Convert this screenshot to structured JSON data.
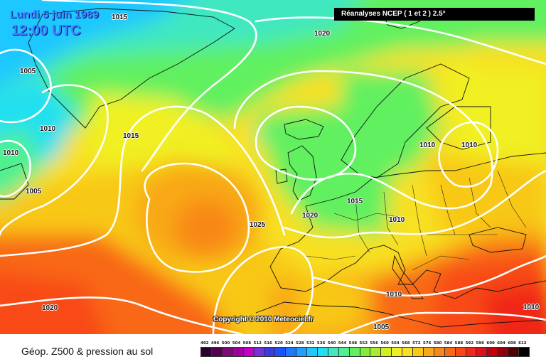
{
  "header": {
    "date": "Lundi 5 juin 1989",
    "time": "12:00 UTC",
    "source": "Réanalyses NCEP ( 1 et 2 ) 2.5°"
  },
  "map": {
    "copyright": "Copyright © 2010 Meteociel.fr",
    "isobar_labels": [
      "1015",
      "1020",
      "1005",
      "1010",
      "1015",
      "1010",
      "1005",
      "1025",
      "1020",
      "1015",
      "1010",
      "1010",
      "1010",
      "1010",
      "1020",
      "1005",
      "1010"
    ]
  },
  "footer": {
    "title": "Géop. Z500 & pression au sol"
  },
  "legend": {
    "ticks": [
      "492",
      "496",
      "500",
      "504",
      "508",
      "512",
      "516",
      "520",
      "524",
      "528",
      "532",
      "536",
      "540",
      "544",
      "548",
      "552",
      "556",
      "560",
      "564",
      "568",
      "572",
      "576",
      "580",
      "584",
      "588",
      "592",
      "596",
      "600",
      "604",
      "608",
      "612"
    ],
    "colors": [
      "#2a0030",
      "#55004f",
      "#7a0a7a",
      "#a000a0",
      "#c000c8",
      "#7a30d8",
      "#3a3ae0",
      "#1a50ff",
      "#1e78ff",
      "#1ea0ff",
      "#1ec8ff",
      "#20e0f0",
      "#40e8c0",
      "#50f090",
      "#60f060",
      "#80ec40",
      "#a8ec30",
      "#d0f020",
      "#f0f020",
      "#f8e020",
      "#f8c818",
      "#f8a818",
      "#f88818",
      "#f86818",
      "#f84818",
      "#f02818",
      "#e01018",
      "#c00010",
      "#900008",
      "#500000",
      "#000000"
    ]
  }
}
